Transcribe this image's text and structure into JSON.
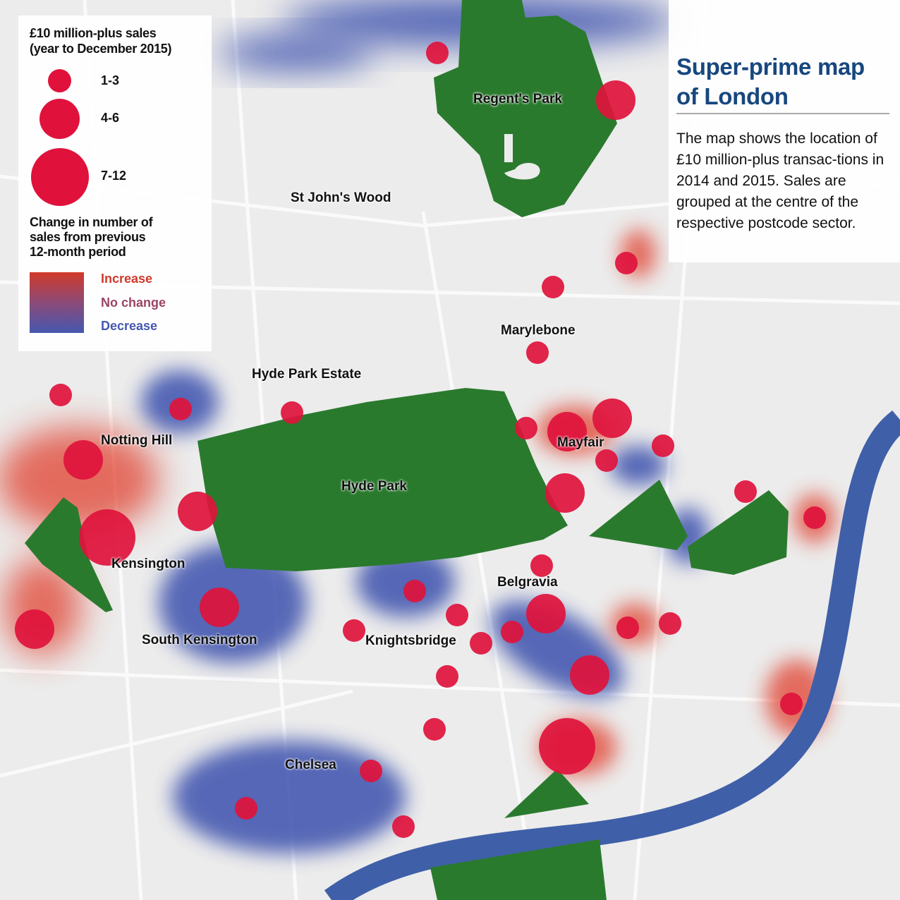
{
  "title": "Super-prime map of London",
  "description": "The map shows the location of £10 million-plus transac-tions in 2014 and 2015. Sales are grouped at the centre of the respective postcode sector.",
  "legend": {
    "size_title_1": "£10 million-plus sales",
    "size_title_2": "(year to December 2015)",
    "bins": [
      "1-3",
      "4-6",
      "7-12"
    ],
    "change_title_1": "Change in number of",
    "change_title_2": "sales from previous",
    "change_title_3": "12-month period",
    "increase": "Increase",
    "no_change": "No change",
    "decrease": "Decrease",
    "colors": {
      "increase": "#d03a2a",
      "no_change": "#8c4a78",
      "decrease": "#4558b0",
      "marker": "#e0123c",
      "park": "#2a7a2e",
      "river": "#3f5fa8"
    }
  },
  "places": {
    "regents_park": "Regent's Park",
    "st_johns_wood": "St John's Wood",
    "marylebone": "Marylebone",
    "hyde_park_estate": "Hyde Park Estate",
    "notting_hill": "Notting Hill",
    "mayfair": "Mayfair",
    "hyde_park": "Hyde Park",
    "kensington": "Kensington",
    "belgravia": "Belgravia",
    "south_kensington": "South Kensington",
    "knightsbridge": "Knightsbridge",
    "chelsea": "Chelsea"
  }
}
